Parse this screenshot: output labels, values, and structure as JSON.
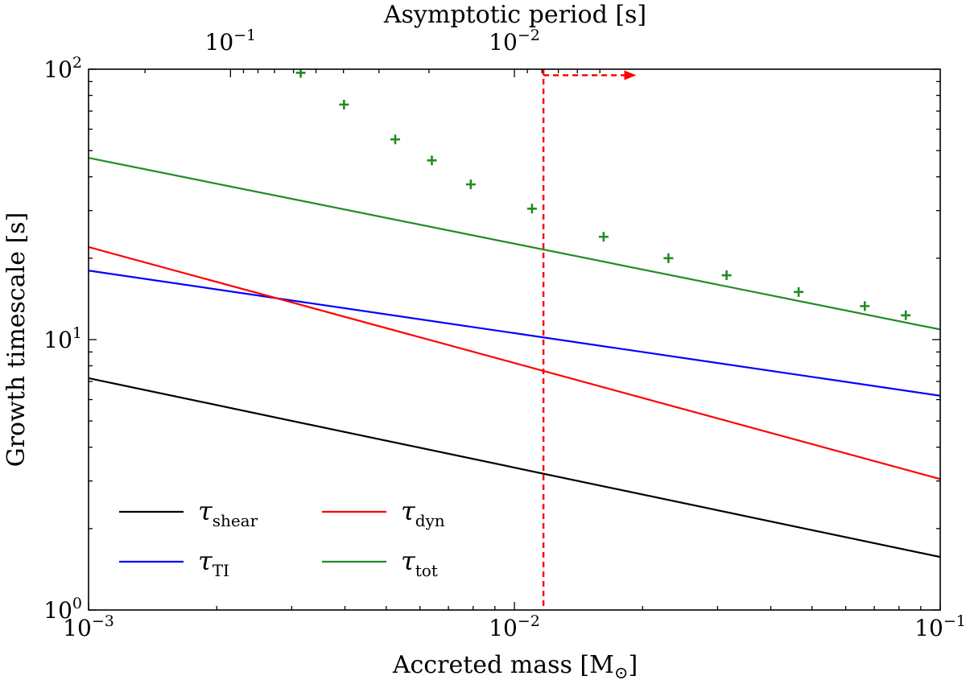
{
  "chart_data": {
    "type": "line",
    "title": "",
    "xlabel": "Accreted mass [M",
    "xlabel_unit_symbol": "⊙",
    "xlabel_close": "]",
    "ylabel": "Growth timescale [s]",
    "x2label": "Asymptotic period [s]",
    "xscale": "log",
    "yscale": "log",
    "xlim": [
      0.001,
      0.1
    ],
    "ylim": [
      1,
      100
    ],
    "x_ticks": [
      {
        "value": 0.001,
        "base": "10",
        "exp": "−3"
      },
      {
        "value": 0.01,
        "base": "10",
        "exp": "−2"
      },
      {
        "value": 0.1,
        "base": "10",
        "exp": "−1"
      }
    ],
    "y_ticks": [
      {
        "value": 1,
        "base": "10",
        "exp": "0"
      },
      {
        "value": 10,
        "base": "10",
        "exp": "1"
      },
      {
        "value": 100,
        "base": "10",
        "exp": "2"
      }
    ],
    "x2_ticks": [
      {
        "period": 0.1,
        "base": "10",
        "exp": "−1"
      },
      {
        "period": 0.01,
        "base": "10",
        "exp": "−2"
      }
    ],
    "series": [
      {
        "name": "τ_shear",
        "symbol": "τ",
        "sub": "shear",
        "color": "#000000",
        "x": [
          0.001,
          0.1
        ],
        "y": [
          7.2,
          1.57
        ]
      },
      {
        "name": "τ_TI",
        "symbol": "τ",
        "sub": "TI",
        "color": "#0000ff",
        "x": [
          0.001,
          0.1
        ],
        "y": [
          18.0,
          6.2
        ]
      },
      {
        "name": "τ_dyn",
        "symbol": "τ",
        "sub": "dyn",
        "color": "#ff0000",
        "x": [
          0.001,
          0.1
        ],
        "y": [
          22.0,
          3.05
        ]
      },
      {
        "name": "τ_tot",
        "symbol": "τ",
        "sub": "tot",
        "color": "#228b22",
        "x": [
          0.001,
          0.1
        ],
        "y": [
          47.0,
          10.9
        ]
      }
    ],
    "scatter": {
      "name": "asymptotic-period points",
      "marker": "+",
      "color": "#228b22",
      "x": [
        0.00315,
        0.00398,
        0.00525,
        0.0064,
        0.0079,
        0.011,
        0.0162,
        0.023,
        0.0315,
        0.0465,
        0.0665,
        0.083
      ],
      "y": [
        97,
        74,
        55,
        46,
        37.5,
        30.5,
        24,
        20,
        17.3,
        15,
        13.3,
        12.3
      ]
    },
    "threshold": {
      "x": 0.0117,
      "color": "#ff0000",
      "style": "dashed",
      "arrow_direction": "right",
      "arrow_y": 95,
      "arrow_to_x": 0.019
    },
    "legend": {
      "placement": "lower-left",
      "columns": 2,
      "order": [
        "τ_shear",
        "τ_dyn",
        "τ_TI",
        "τ_tot"
      ]
    },
    "grid": false
  }
}
